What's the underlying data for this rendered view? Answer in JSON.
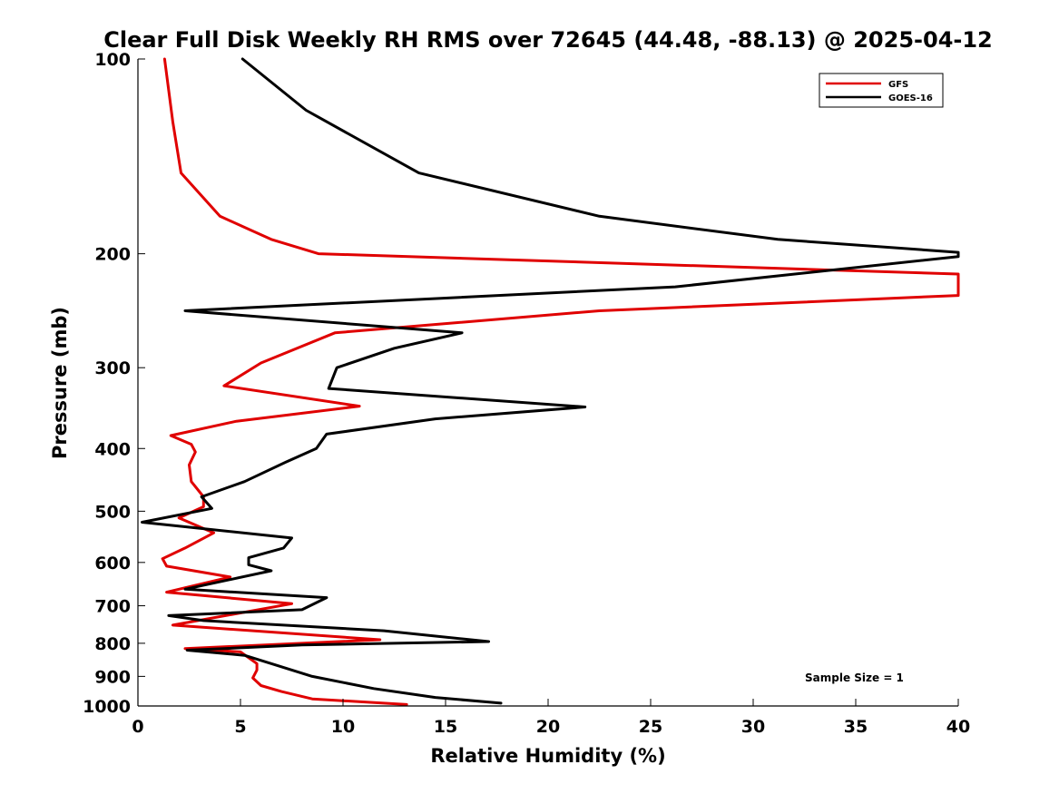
{
  "chart_data": {
    "type": "line",
    "title": "Clear Full Disk Weekly RH RMS over 72645 (44.48, -88.13) @ 2025-04-12",
    "xlabel": "Relative Humidity (%)",
    "ylabel": "Pressure (mb)",
    "xlim": [
      0,
      40
    ],
    "ylim": [
      1000,
      100
    ],
    "yscale": "log",
    "x_ticks": [
      0,
      5,
      10,
      15,
      20,
      25,
      30,
      35,
      40
    ],
    "x_tick_labels": [
      "0",
      "5",
      "10",
      "15",
      "20",
      "25",
      "30",
      "35",
      "40"
    ],
    "y_ticks": [
      100,
      200,
      300,
      400,
      500,
      600,
      700,
      800,
      900,
      1000
    ],
    "y_tick_labels": [
      "100",
      "200",
      "300",
      "400",
      "500",
      "600",
      "700",
      "800",
      "900",
      "1000"
    ],
    "legend_position": "top-right",
    "annotation": "Sample Size = 1",
    "series": [
      {
        "name": "GFS",
        "color": "#e00000",
        "points": [
          [
            1.3,
            100
          ],
          [
            1.7,
            125
          ],
          [
            2.1,
            150
          ],
          [
            4.0,
            175
          ],
          [
            6.5,
            190
          ],
          [
            8.8,
            200
          ],
          [
            40,
            215
          ],
          [
            40,
            232
          ],
          [
            22.5,
            245
          ],
          [
            9.6,
            265
          ],
          [
            6.0,
            295
          ],
          [
            4.2,
            320
          ],
          [
            10.8,
            344
          ],
          [
            4.8,
            363
          ],
          [
            1.6,
            382
          ],
          [
            2.6,
            394
          ],
          [
            2.8,
            405
          ],
          [
            2.5,
            424
          ],
          [
            2.6,
            450
          ],
          [
            3.2,
            475
          ],
          [
            3.2,
            492
          ],
          [
            2.0,
            512
          ],
          [
            3.7,
            540
          ],
          [
            2.3,
            570
          ],
          [
            1.2,
            592
          ],
          [
            1.4,
            608
          ],
          [
            4.5,
            632
          ],
          [
            1.4,
            667
          ],
          [
            7.5,
            695
          ],
          [
            1.7,
            750
          ],
          [
            11.8,
            790
          ],
          [
            2.3,
            815
          ],
          [
            5.0,
            825
          ],
          [
            5.8,
            860
          ],
          [
            5.8,
            880
          ],
          [
            5.6,
            905
          ],
          [
            6.0,
            930
          ],
          [
            7.0,
            950
          ],
          [
            8.5,
            975
          ],
          [
            13.1,
            995
          ]
        ]
      },
      {
        "name": "GOES-16",
        "color": "#000000",
        "points": [
          [
            5.1,
            100
          ],
          [
            8.2,
            120
          ],
          [
            13.7,
            150
          ],
          [
            22.5,
            175
          ],
          [
            31.2,
            190
          ],
          [
            40,
            199
          ],
          [
            40,
            202
          ],
          [
            26.2,
            225
          ],
          [
            2.3,
            245
          ],
          [
            15.8,
            265
          ],
          [
            12.5,
            280
          ],
          [
            9.7,
            300
          ],
          [
            9.3,
            323
          ],
          [
            21.8,
            345
          ],
          [
            14.5,
            360
          ],
          [
            9.2,
            380
          ],
          [
            8.7,
            400
          ],
          [
            7.2,
            420
          ],
          [
            5.2,
            450
          ],
          [
            3.1,
            475
          ],
          [
            3.6,
            495
          ],
          [
            0.2,
            520
          ],
          [
            7.5,
            550
          ],
          [
            7.1,
            570
          ],
          [
            5.4,
            590
          ],
          [
            5.4,
            605
          ],
          [
            6.5,
            618
          ],
          [
            2.3,
            660
          ],
          [
            9.2,
            680
          ],
          [
            8.0,
            710
          ],
          [
            1.5,
            725
          ],
          [
            3.2,
            738
          ],
          [
            12.0,
            765
          ],
          [
            17.1,
            795
          ],
          [
            8.0,
            805
          ],
          [
            4.2,
            815
          ],
          [
            2.4,
            820
          ],
          [
            5.2,
            835
          ],
          [
            6.5,
            860
          ],
          [
            8.5,
            900
          ],
          [
            11.5,
            940
          ],
          [
            14.5,
            970
          ],
          [
            17.7,
            990
          ]
        ]
      }
    ]
  }
}
